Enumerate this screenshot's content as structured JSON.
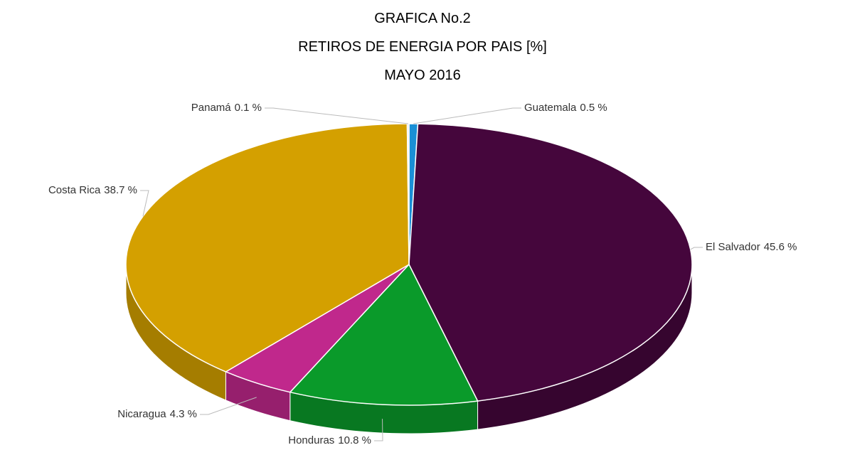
{
  "chart_data": {
    "type": "pie3d",
    "title": "GRAFICA No.2",
    "subtitle": "RETIROS DE ENERGIA POR PAIS [%]",
    "period": "MAYO 2016",
    "categories": [
      "Guatemala",
      "El Salvador",
      "Honduras",
      "Nicaragua",
      "Costa Rica",
      "Panamá"
    ],
    "values": [
      0.5,
      45.6,
      10.8,
      4.3,
      38.7,
      0.1
    ],
    "value_labels": [
      "0.5 %",
      "45.6 %",
      "10.8 %",
      "4.3 %",
      "38.7 %",
      "0.1 %"
    ],
    "colors": [
      "#1a8fd6",
      "#45063c",
      "#0a9a2a",
      "#c0288c",
      "#d4a000",
      "#e4e4e4"
    ]
  }
}
